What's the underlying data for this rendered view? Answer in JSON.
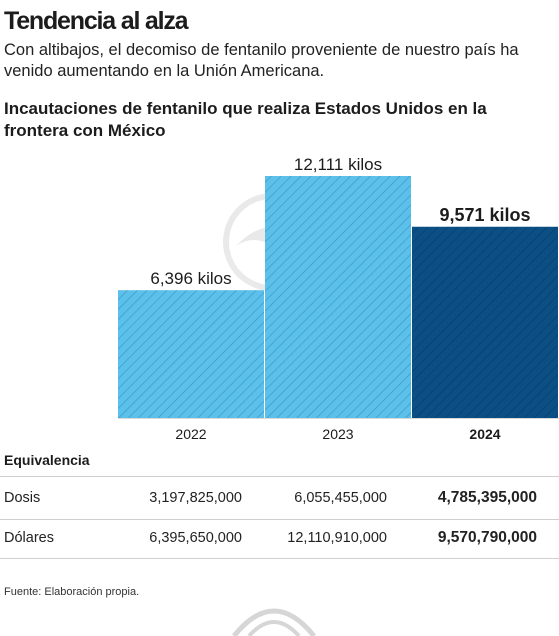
{
  "header": {
    "headline": "Tendencia al alza",
    "dek": "Con altibajos, el decomiso de fentanilo proveniente de nuestro país ha venido aumentando en la Unión Americana."
  },
  "chart_data": {
    "type": "bar",
    "title": "Incautaciones de fentanilo que realiza Estados Unidos en la frontera con México",
    "categories": [
      "2022",
      "2023",
      "2024"
    ],
    "values": [
      6396,
      12111,
      9571
    ],
    "unit": "kilos",
    "data_labels": [
      "6,396 kilos",
      "12,111 kilos",
      "9,571 kilos"
    ],
    "highlight_index": 2,
    "ylim": [
      0,
      12111
    ],
    "colors": {
      "bar_fill": "#5bc0ea",
      "bar_hatch": "#1f6f9e",
      "highlight_fill": "#0b4f85",
      "highlight_hatch": "#07375f",
      "axis_line": "#d9d9d9"
    }
  },
  "table": {
    "header": "Equivalencia",
    "rows": [
      {
        "label": "Dosis",
        "values": [
          "3,197,825,000",
          "6,055,455,000",
          "4,785,395,000"
        ]
      },
      {
        "label": "Dólares",
        "values": [
          "6,395,650,000",
          "12,110,910,000",
          "9,570,790,000"
        ]
      }
    ]
  },
  "footer": {
    "source": "Fuente: Elaboración propia."
  }
}
